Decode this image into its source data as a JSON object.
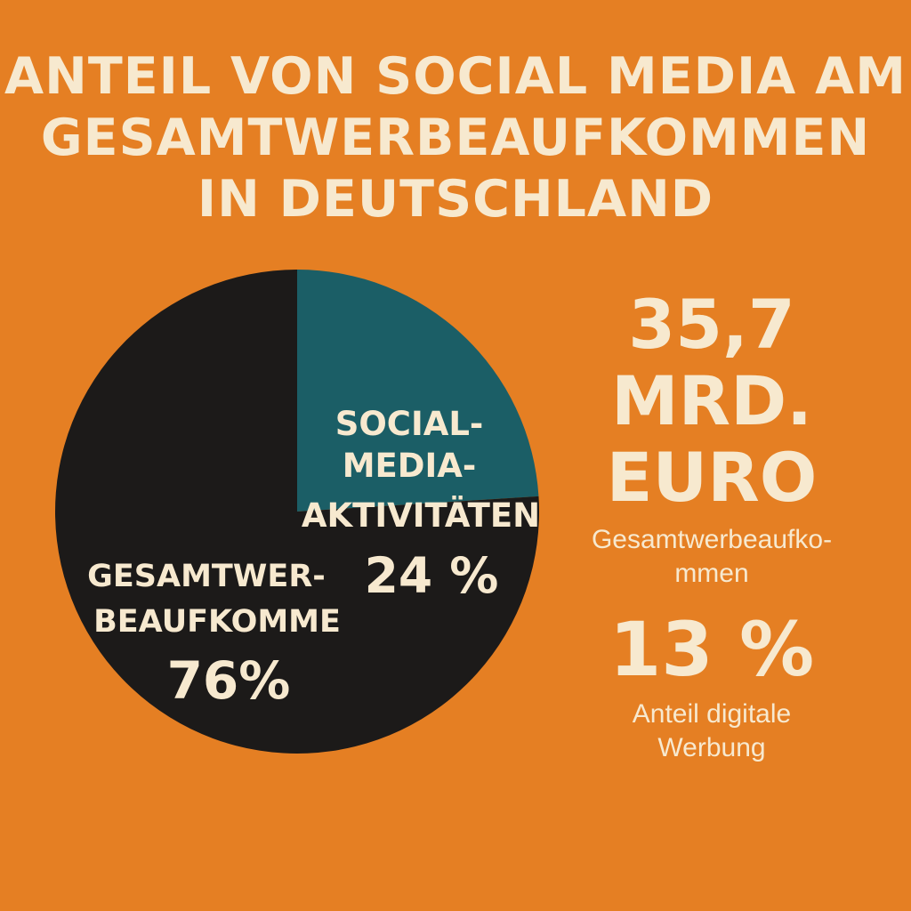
{
  "title_lines": [
    "ANTEIL VON SOCIAL MEDIA AM",
    "GESAMTWERBEAUFKOMMEN",
    "IN DEUTSCHLAND"
  ],
  "colors": {
    "background": "#E57F23",
    "text": "#F7E9CF",
    "slice_social": "#1B5E66",
    "slice_total": "#1C1A19"
  },
  "chart_data": {
    "type": "pie",
    "title": "ANTEIL VON SOCIAL MEDIA AM GESAMTWERBEAUFKOMMEN IN DEUTSCHLAND",
    "slices": [
      {
        "name": "Social-Media-Aktivitäten",
        "label_lines": [
          "SOCIAL-",
          "MEDIA-",
          "AKTIVITÄTEN"
        ],
        "value": 24,
        "value_label": "24 %",
        "color": "#1B5E66"
      },
      {
        "name": "Gesamtwerbeaufkommen",
        "label_lines": [
          "GESAMTWER-",
          "BEAUFKOMME"
        ],
        "value": 76,
        "value_label": "76%",
        "color": "#1C1A19"
      }
    ]
  },
  "stats": [
    {
      "value_lines": [
        "35,7 MRD.",
        "EURO"
      ],
      "caption_lines": [
        "Gesamtwerbeaufko-",
        "mmen"
      ]
    },
    {
      "value_lines": [
        "13 %"
      ],
      "caption_lines": [
        "Anteil digitale",
        "Werbung"
      ]
    }
  ]
}
